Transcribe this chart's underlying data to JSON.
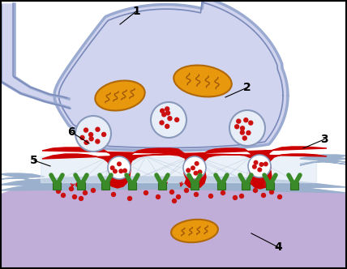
{
  "bg_color": "#ffffff",
  "bouton_fill": "#d0d4ee",
  "bouton_membrane_outer": "#9aaad0",
  "bouton_membrane_inner": "#7888b8",
  "active_zone_color": "#cc0000",
  "postsynaptic_fill": "#c0aed8",
  "postsynaptic_membrane": "#a090c0",
  "cleft_fill": "#dce4f0",
  "vesicle_fill": "#e8eef8",
  "vesicle_border": "#8899bb",
  "nt_color": "#cc1111",
  "mito_fill": "#e8980c",
  "mito_border": "#b06808",
  "mito_crista": "#a05808",
  "receptor_color": "#3a8a2a",
  "label_fontsize": 10,
  "label_color": "#000000"
}
